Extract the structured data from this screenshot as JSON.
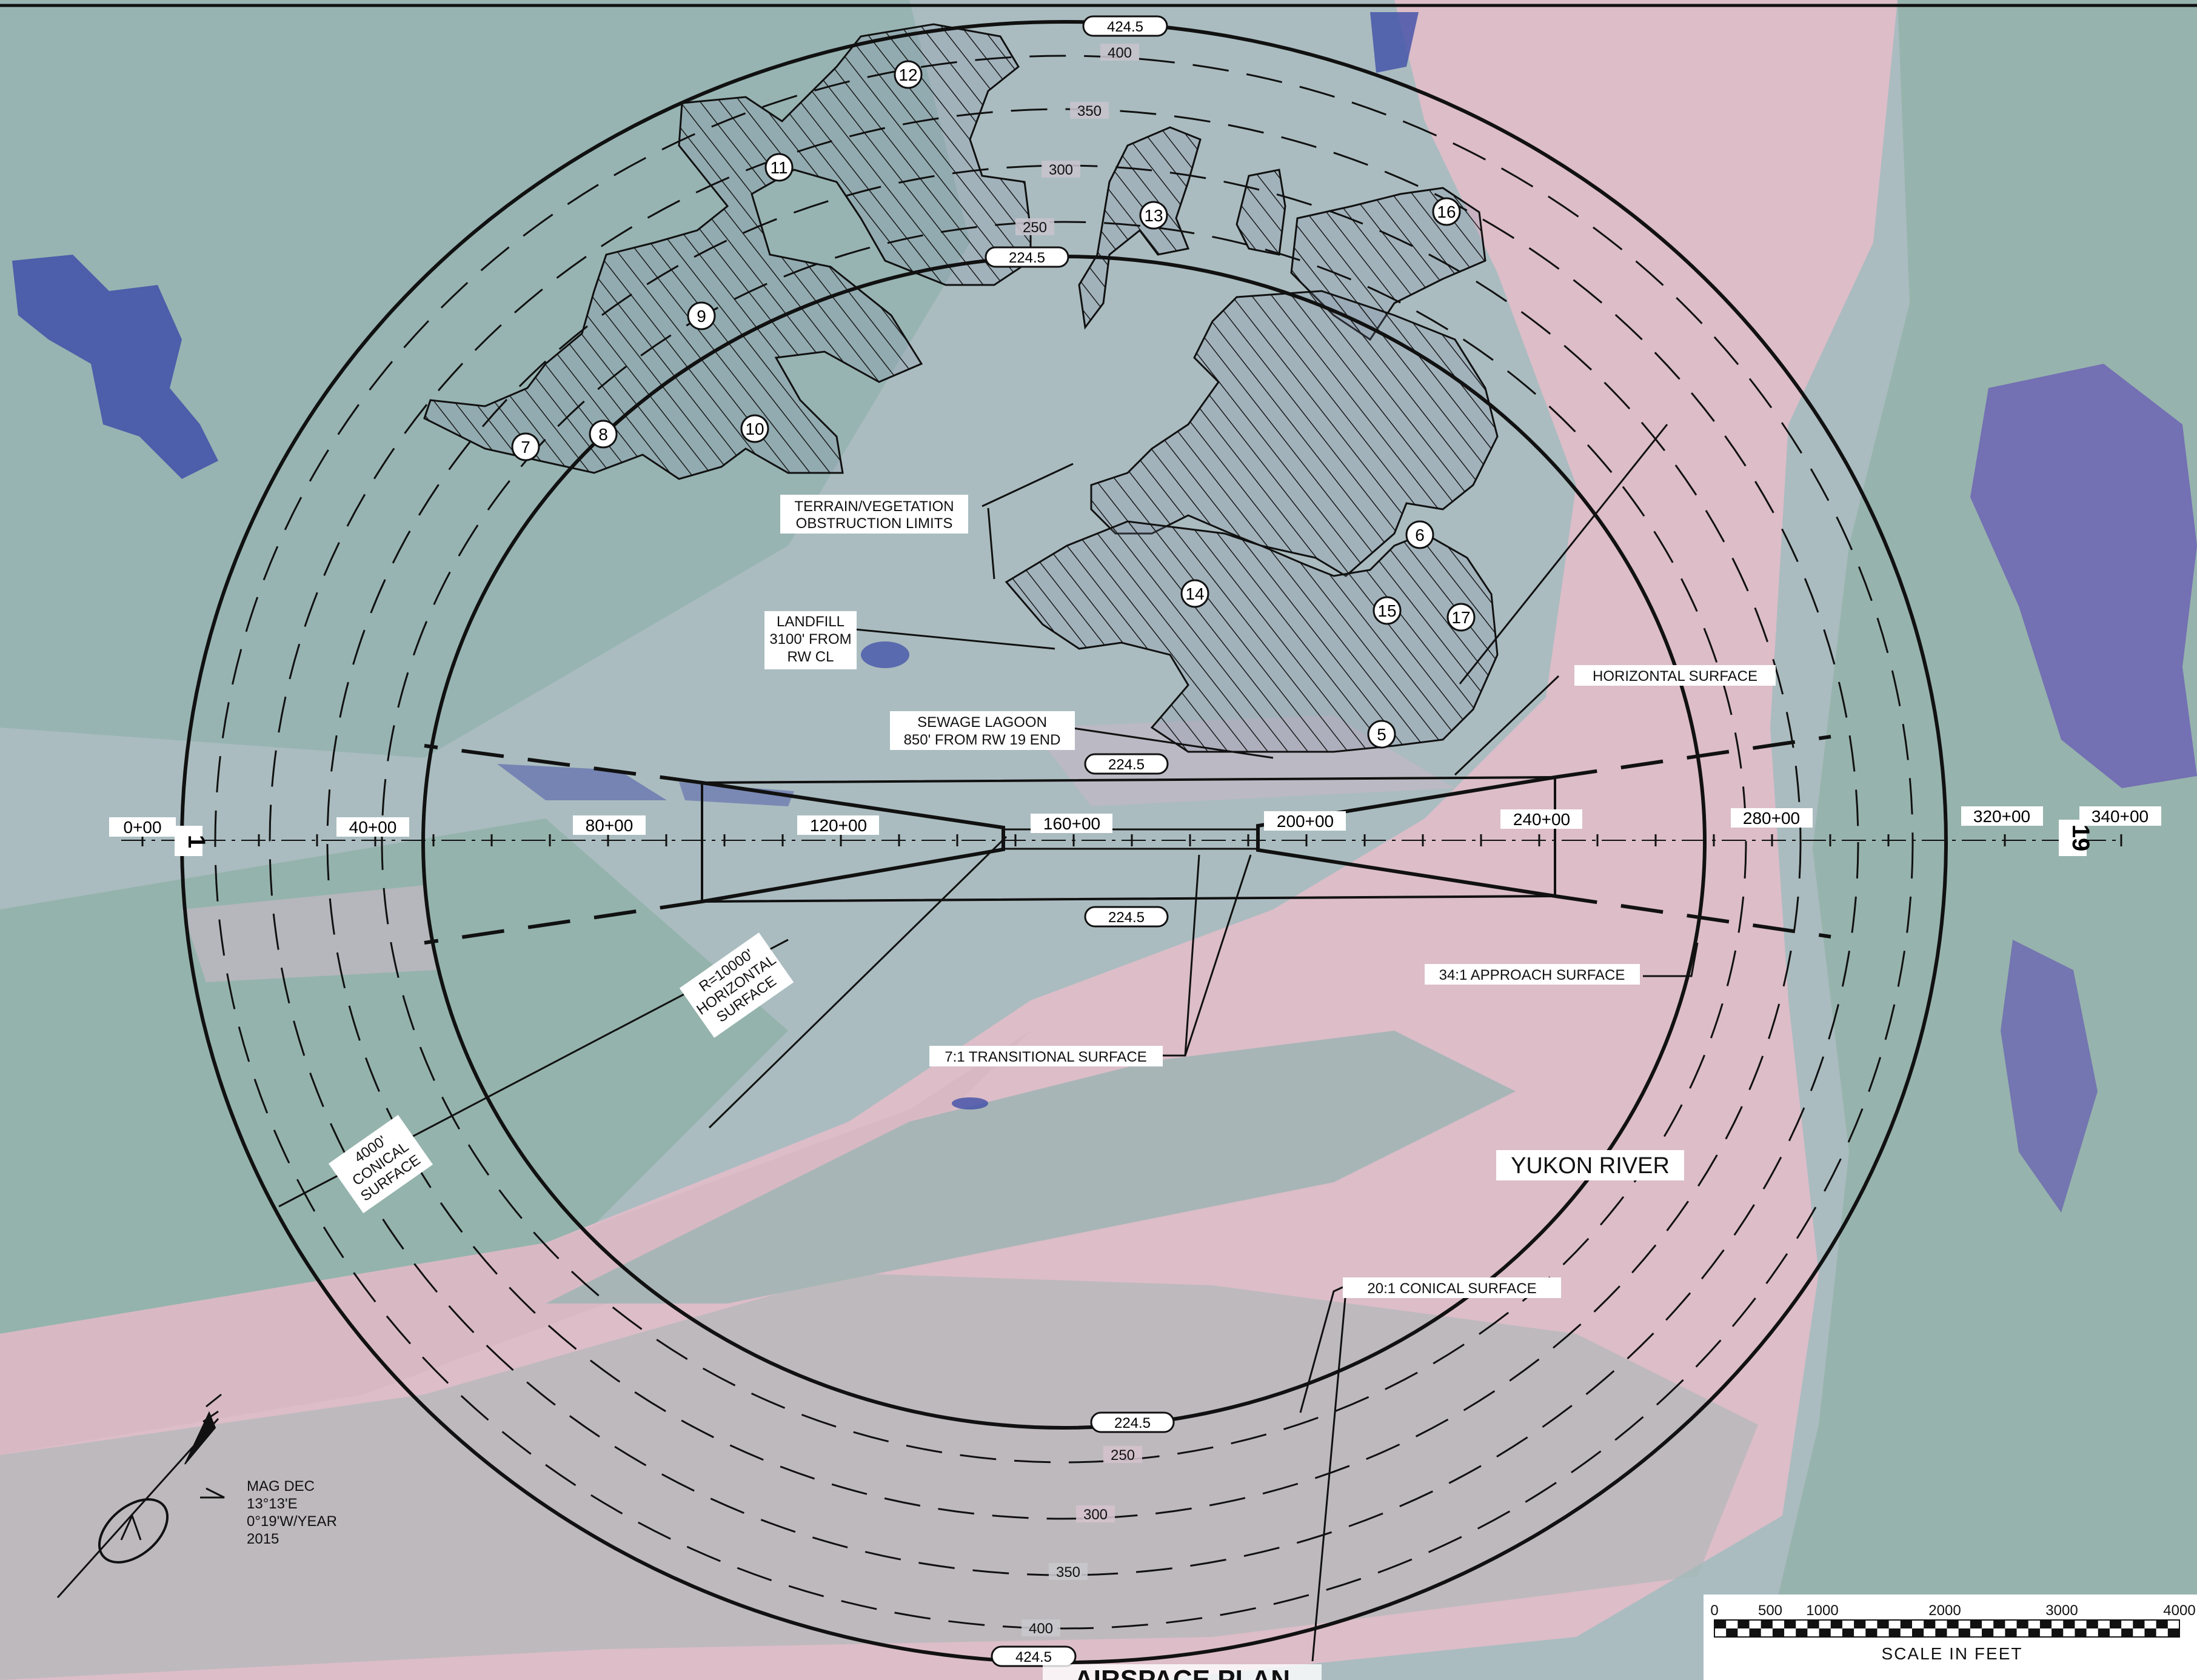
{
  "map": {
    "title": "AIRSPACE PLAN",
    "water_body_label": "YUKON RIVER",
    "runway": {
      "end_labels": [
        "1",
        "19"
      ],
      "stations": [
        "0+00",
        "40+00",
        "80+00",
        "120+00",
        "160+00",
        "200+00",
        "240+00",
        "280+00",
        "320+00",
        "340+00"
      ]
    },
    "elevation_labels": {
      "outer": "424.5",
      "inner": "224.5",
      "contours": [
        "400",
        "350",
        "300",
        "250"
      ]
    },
    "obstruction_numbers": [
      "5",
      "6",
      "7",
      "8",
      "9",
      "10",
      "11",
      "12",
      "13",
      "14",
      "15",
      "16",
      "17"
    ],
    "callouts": {
      "terrain_vegetation": [
        "TERRAIN/VEGETATION",
        "OBSTRUCTION LIMITS"
      ],
      "landfill": [
        "LANDFILL",
        "3100' FROM",
        "RW CL"
      ],
      "sewage_lagoon": [
        "SEWAGE LAGOON",
        "850' FROM RW 19 END"
      ],
      "horizontal_surface": "HORIZONTAL SURFACE",
      "approach_surface": "34:1 APPROACH SURFACE",
      "transitional_surface": "7:1 TRANSITIONAL SURFACE",
      "conical_surface": "20:1 CONICAL SURFACE",
      "horizontal_radius": [
        "R=10000'",
        "HORIZONTAL",
        "SURFACE"
      ],
      "conical_width": [
        "4000'",
        "CONICAL",
        "SURFACE"
      ]
    },
    "north_arrow": {
      "lines": [
        "MAG DEC",
        "13°13'E",
        "0°19'W/YEAR",
        "2015"
      ]
    },
    "scale_bar": {
      "ticks": [
        "0",
        "500",
        "1000",
        "2000",
        "3000",
        "4000"
      ],
      "label": "SCALE IN FEET"
    },
    "colors": {
      "water": "#d9bcc6",
      "land": "#9fb7bd",
      "lake": "#3f4fa8",
      "linework": "#111111",
      "label_fill": "#ffffff"
    }
  }
}
